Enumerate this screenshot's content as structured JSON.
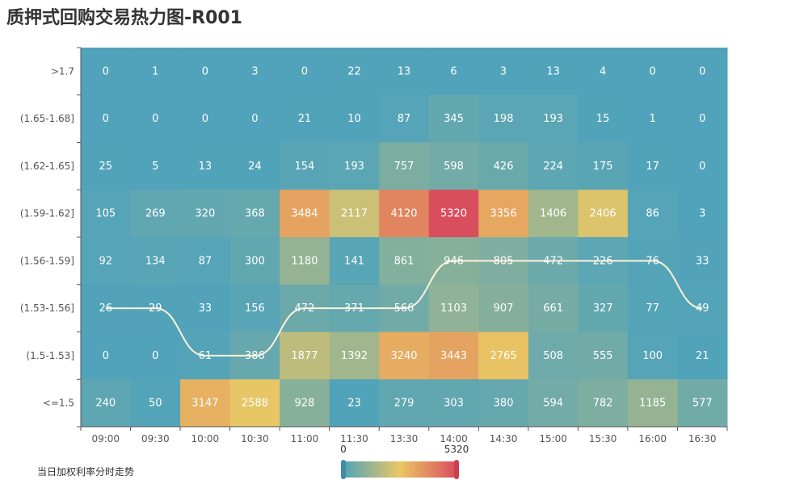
{
  "title": "质押式回购交易热力图-R001",
  "chart_data": {
    "type": "heatmap",
    "title": "质押式回购交易热力图-R001",
    "x_categories": [
      "09:00",
      "09:30",
      "10:00",
      "10:30",
      "11:00",
      "11:30",
      "13:30",
      "14:00",
      "14:30",
      "15:00",
      "15:30",
      "16:00",
      "16:30"
    ],
    "y_categories": [
      ">1.7",
      "(1.65-1.68]",
      "(1.62-1.65]",
      "(1.59-1.62]",
      "(1.56-1.59]",
      "(1.53-1.56]",
      "(1.5-1.53]",
      "<=1.5"
    ],
    "values": [
      [
        0,
        1,
        0,
        3,
        0,
        22,
        13,
        6,
        3,
        13,
        4,
        0,
        0
      ],
      [
        0,
        0,
        0,
        0,
        21,
        10,
        87,
        345,
        198,
        193,
        15,
        1,
        0
      ],
      [
        25,
        5,
        13,
        24,
        154,
        193,
        757,
        598,
        426,
        224,
        175,
        17,
        0
      ],
      [
        105,
        269,
        320,
        368,
        3484,
        2117,
        4120,
        5320,
        3356,
        1406,
        2406,
        86,
        3
      ],
      [
        92,
        134,
        87,
        300,
        1180,
        141,
        861,
        946,
        805,
        472,
        226,
        76,
        33
      ],
      [
        26,
        29,
        33,
        156,
        472,
        371,
        566,
        1103,
        907,
        661,
        327,
        77,
        49
      ],
      [
        0,
        0,
        61,
        386,
        1877,
        1392,
        3240,
        3443,
        2765,
        508,
        555,
        100,
        21
      ],
      [
        240,
        50,
        3147,
        2588,
        928,
        23,
        279,
        303,
        380,
        594,
        782,
        1185,
        577
      ]
    ],
    "visual_map": {
      "min": 0,
      "max": 5320,
      "colors": [
        "#50a3ba",
        "#eac763",
        "#d94e5d"
      ]
    },
    "trend_line": {
      "name": "当日加权利率分时走势",
      "color": "#fdf3dc",
      "points": [
        {
          "x": "09:00",
          "y": "(1.53-1.56]"
        },
        {
          "x": "09:30",
          "y": "(1.53-1.56]"
        },
        {
          "x": "10:00",
          "y": "(1.5-1.53]"
        },
        {
          "x": "10:30",
          "y": "(1.5-1.53]"
        },
        {
          "x": "11:00",
          "y": "(1.53-1.56]"
        },
        {
          "x": "11:30",
          "y": "(1.53-1.56]"
        },
        {
          "x": "13:30",
          "y": "(1.53-1.56]"
        },
        {
          "x": "14:00",
          "y": "(1.56-1.59]"
        },
        {
          "x": "14:30",
          "y": "(1.56-1.59]"
        },
        {
          "x": "15:00",
          "y": "(1.56-1.59]"
        },
        {
          "x": "15:30",
          "y": "(1.56-1.59]"
        },
        {
          "x": "16:00",
          "y": "(1.56-1.59]"
        },
        {
          "x": "16:30",
          "y": "(1.53-1.56]"
        }
      ]
    },
    "legend_text": "当日加权利率分时走势",
    "grid": false
  }
}
